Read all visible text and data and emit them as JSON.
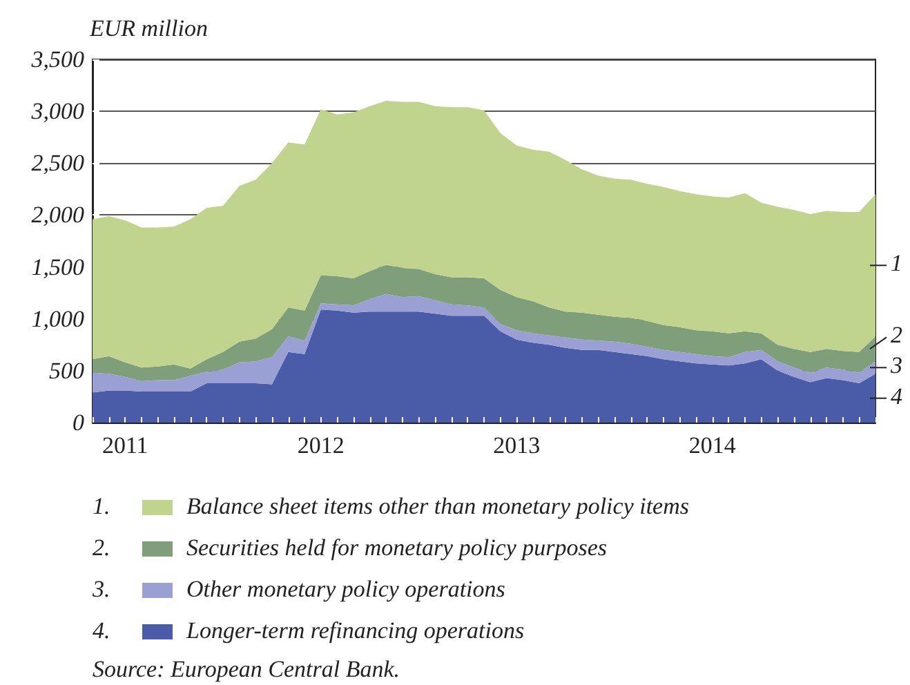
{
  "chart_data": {
    "type": "area",
    "ylabel": "EUR million",
    "stacked": true,
    "grid": "y",
    "legend": "bottom",
    "categories": [
      null,
      null,
      "2011",
      null,
      null,
      null,
      null,
      null,
      null,
      null,
      null,
      null,
      null,
      null,
      "2012",
      null,
      null,
      null,
      null,
      null,
      null,
      null,
      null,
      null,
      null,
      null,
      "2013",
      null,
      null,
      null,
      null,
      null,
      null,
      null,
      null,
      null,
      null,
      null,
      "2014",
      null,
      null,
      null,
      null,
      null,
      null,
      null,
      null,
      null,
      null
    ],
    "ylim": [
      0,
      3500
    ],
    "yticks": [
      0,
      500,
      {
        "value": 1000,
        "label": "1,000"
      },
      {
        "value": 1500,
        "label": "1,500"
      },
      {
        "value": 2000,
        "label": "2,000"
      },
      {
        "value": 2500,
        "label": "2,500"
      },
      {
        "value": 3000,
        "label": "3,000"
      },
      {
        "value": 3500,
        "label": "3,500"
      }
    ],
    "series": [
      {
        "name": "Longer-term refinancing operations",
        "color": "#4a5ba8",
        "values": [
          290,
          310,
          310,
          300,
          300,
          300,
          300,
          380,
          380,
          380,
          380,
          370,
          680,
          660,
          1090,
          1080,
          1060,
          1070,
          1070,
          1070,
          1070,
          1050,
          1030,
          1030,
          1030,
          880,
          800,
          770,
          750,
          720,
          700,
          700,
          680,
          660,
          640,
          610,
          590,
          570,
          560,
          550,
          570,
          610,
          500,
          440,
          390,
          430,
          410,
          380,
          470
        ]
      },
      {
        "name": "Other monetary policy operations",
        "color": "#9aa0d4",
        "values": [
          190,
          160,
          130,
          100,
          110,
          110,
          150,
          110,
          130,
          200,
          210,
          260,
          150,
          130,
          60,
          60,
          70,
          120,
          170,
          140,
          150,
          130,
          110,
          100,
          80,
          70,
          90,
          90,
          90,
          100,
          100,
          90,
          100,
          100,
          90,
          90,
          90,
          90,
          80,
          80,
          110,
          90,
          90,
          90,
          90,
          100,
          100,
          100,
          120
        ]
      },
      {
        "name": "Securities held for monetary policy purposes",
        "color": "#7f9f7a",
        "values": [
          130,
          170,
          140,
          130,
          130,
          150,
          70,
          120,
          170,
          200,
          220,
          270,
          280,
          290,
          270,
          270,
          260,
          270,
          280,
          280,
          260,
          250,
          260,
          270,
          280,
          330,
          320,
          310,
          270,
          250,
          260,
          250,
          240,
          250,
          250,
          240,
          240,
          230,
          240,
          230,
          200,
          160,
          160,
          180,
          200,
          180,
          180,
          200,
          240
        ]
      },
      {
        "name": "Balance sheet items other than monetary policy items",
        "color": "#c0d48e",
        "values": [
          1350,
          1350,
          1370,
          1350,
          1340,
          1330,
          1440,
          1460,
          1410,
          1500,
          1530,
          1600,
          1590,
          1600,
          1600,
          1560,
          1600,
          1590,
          1580,
          1600,
          1610,
          1620,
          1640,
          1640,
          1620,
          1510,
          1460,
          1460,
          1500,
          1460,
          1380,
          1340,
          1330,
          1330,
          1320,
          1330,
          1310,
          1310,
          1300,
          1310,
          1330,
          1260,
          1330,
          1340,
          1330,
          1330,
          1340,
          1350,
          1370
        ]
      }
    ],
    "annotations": [
      "1.",
      "2.",
      "3.",
      "4.",
      "1",
      "2",
      "3",
      "4",
      "Source: European Central Bank."
    ]
  }
}
